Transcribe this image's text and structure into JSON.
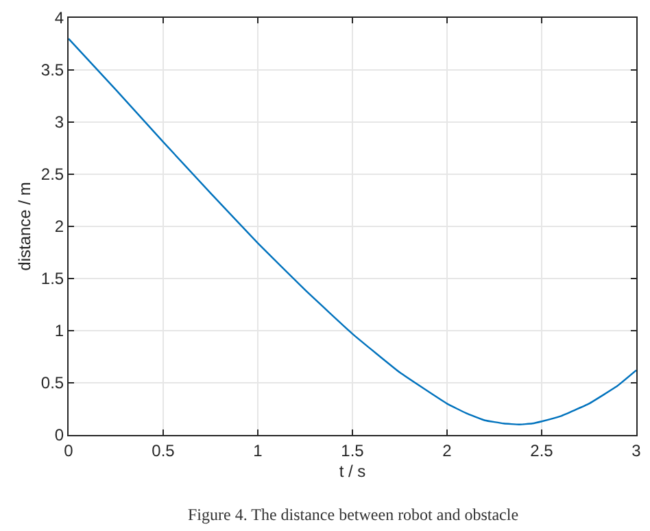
{
  "chart_data": {
    "type": "line",
    "xlabel": "t / s",
    "ylabel": "distance / m",
    "annotations": [
      "Figure 4. The distance between robot and obstacle"
    ],
    "x": [
      0,
      0.25,
      0.5,
      0.75,
      1.0,
      1.25,
      1.5,
      1.75,
      2.0,
      2.1,
      2.2,
      2.3,
      2.38,
      2.45,
      2.5,
      2.6,
      2.75,
      2.9,
      3.0
    ],
    "series": [
      {
        "color": "#0072bd",
        "values": [
          3.8,
          3.31,
          2.81,
          2.32,
          1.84,
          1.39,
          0.97,
          0.6,
          0.3,
          0.21,
          0.14,
          0.11,
          0.1,
          0.11,
          0.13,
          0.18,
          0.3,
          0.47,
          0.62
        ]
      }
    ],
    "xlim": [
      0,
      3
    ],
    "ylim": [
      0,
      4
    ],
    "xticks": [
      0,
      0.5,
      1,
      1.5,
      2,
      2.5,
      3
    ],
    "yticks": [
      0,
      0.5,
      1,
      1.5,
      2,
      2.5,
      3,
      3.5,
      4
    ],
    "grid": true,
    "legend": false,
    "marker": "none",
    "line_style": "solid"
  }
}
